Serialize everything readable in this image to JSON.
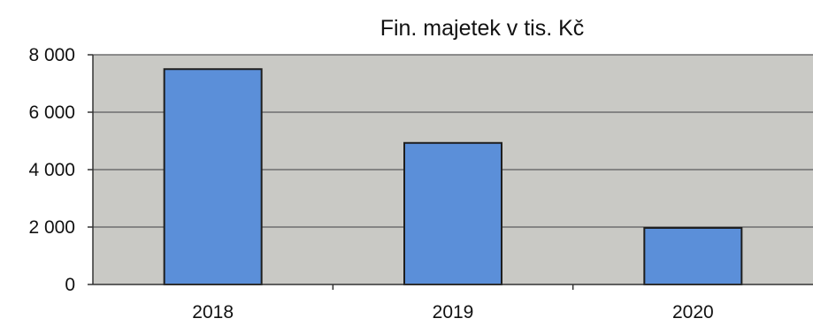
{
  "chart_data": {
    "type": "bar",
    "title": "Fin. majetek v tis. Kč",
    "xlabel": "",
    "ylabel": "",
    "categories": [
      "2018",
      "2019",
      "2020"
    ],
    "values": [
      7500,
      4930,
      1970
    ],
    "ylim": [
      0,
      8000
    ],
    "yticks": [
      0,
      2000,
      4000,
      6000,
      8000
    ],
    "ytick_labels": [
      "0",
      "2 000",
      "4 000",
      "6 000",
      "8 000"
    ],
    "grid": true,
    "legend": "none"
  },
  "colors": {
    "bar_fill": "#5b8fd9",
    "bar_stroke": "#1e1e1e",
    "plot_background": "#c9c9c5",
    "gridline": "#6e6e6e",
    "axis": "#333333"
  }
}
